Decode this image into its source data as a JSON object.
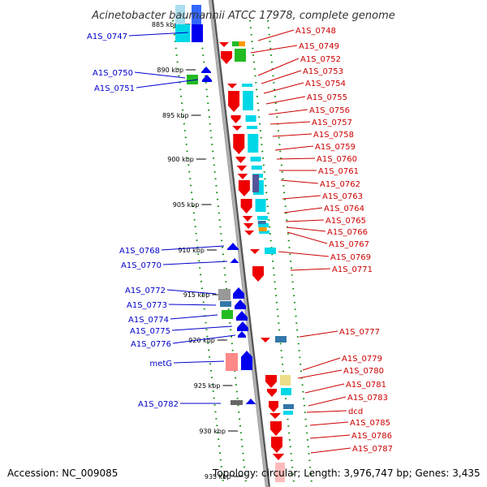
{
  "title": "Acinetobacter baumannii ATCC 17978, complete genome",
  "accession": "Accession: NC_009085",
  "summary": "Topology: circular; Length: 3,976,747 bp; Genes: 3,435",
  "colors": {
    "backbone": "#999999",
    "dotted_rings": "#008800",
    "label_left": "#0000cc",
    "label_right": "#cc0000",
    "arrow_forward": "#0000ee",
    "arrow_reverse": "#ee0000",
    "cyan": "#00d8e8",
    "green": "#22bb22",
    "grey": "#999999",
    "steel_blue": "#3377aa",
    "orange": "#ff9900",
    "pink": "#ff8888",
    "khaki": "#eedd88",
    "purple": "#555599"
  },
  "ticks": [
    {
      "label": "885 kbp"
    },
    {
      "label": "890 kbp"
    },
    {
      "label": "895 kbp"
    },
    {
      "label": "900 kbp"
    },
    {
      "label": "905 kbp"
    },
    {
      "label": "910 kbp"
    },
    {
      "label": "915 kbp"
    },
    {
      "label": "920 kbp"
    },
    {
      "label": "925 kbp"
    },
    {
      "label": "930 kbp"
    },
    {
      "label": "935 kbp"
    }
  ],
  "left_genes": [
    {
      "name": "A1S_0747"
    },
    {
      "name": "A1S_0750"
    },
    {
      "name": "A1S_0751"
    },
    {
      "name": "A1S_0768"
    },
    {
      "name": "A1S_0770"
    },
    {
      "name": "A1S_0772"
    },
    {
      "name": "A1S_0773"
    },
    {
      "name": "A1S_0774"
    },
    {
      "name": "A1S_0775"
    },
    {
      "name": "A1S_0776"
    },
    {
      "name": "metG"
    },
    {
      "name": "A1S_0782"
    }
  ],
  "right_genes": [
    {
      "name": "A1S_0748"
    },
    {
      "name": "A1S_0749"
    },
    {
      "name": "A1S_0752"
    },
    {
      "name": "A1S_0753"
    },
    {
      "name": "A1S_0754"
    },
    {
      "name": "A1S_0755"
    },
    {
      "name": "A1S_0756"
    },
    {
      "name": "A1S_0757"
    },
    {
      "name": "A1S_0758"
    },
    {
      "name": "A1S_0759"
    },
    {
      "name": "A1S_0760"
    },
    {
      "name": "A1S_0761"
    },
    {
      "name": "A1S_0762"
    },
    {
      "name": "A1S_0763"
    },
    {
      "name": "A1S_0764"
    },
    {
      "name": "A1S_0765"
    },
    {
      "name": "A1S_0766"
    },
    {
      "name": "A1S_0767"
    },
    {
      "name": "A1S_0769"
    },
    {
      "name": "A1S_0771"
    },
    {
      "name": "A1S_0777"
    },
    {
      "name": "A1S_0779"
    },
    {
      "name": "A1S_0780"
    },
    {
      "name": "A1S_0781"
    },
    {
      "name": "A1S_0783"
    },
    {
      "name": "dcd"
    },
    {
      "name": "A1S_0785"
    },
    {
      "name": "A1S_0786"
    },
    {
      "name": "A1S_0787"
    }
  ]
}
